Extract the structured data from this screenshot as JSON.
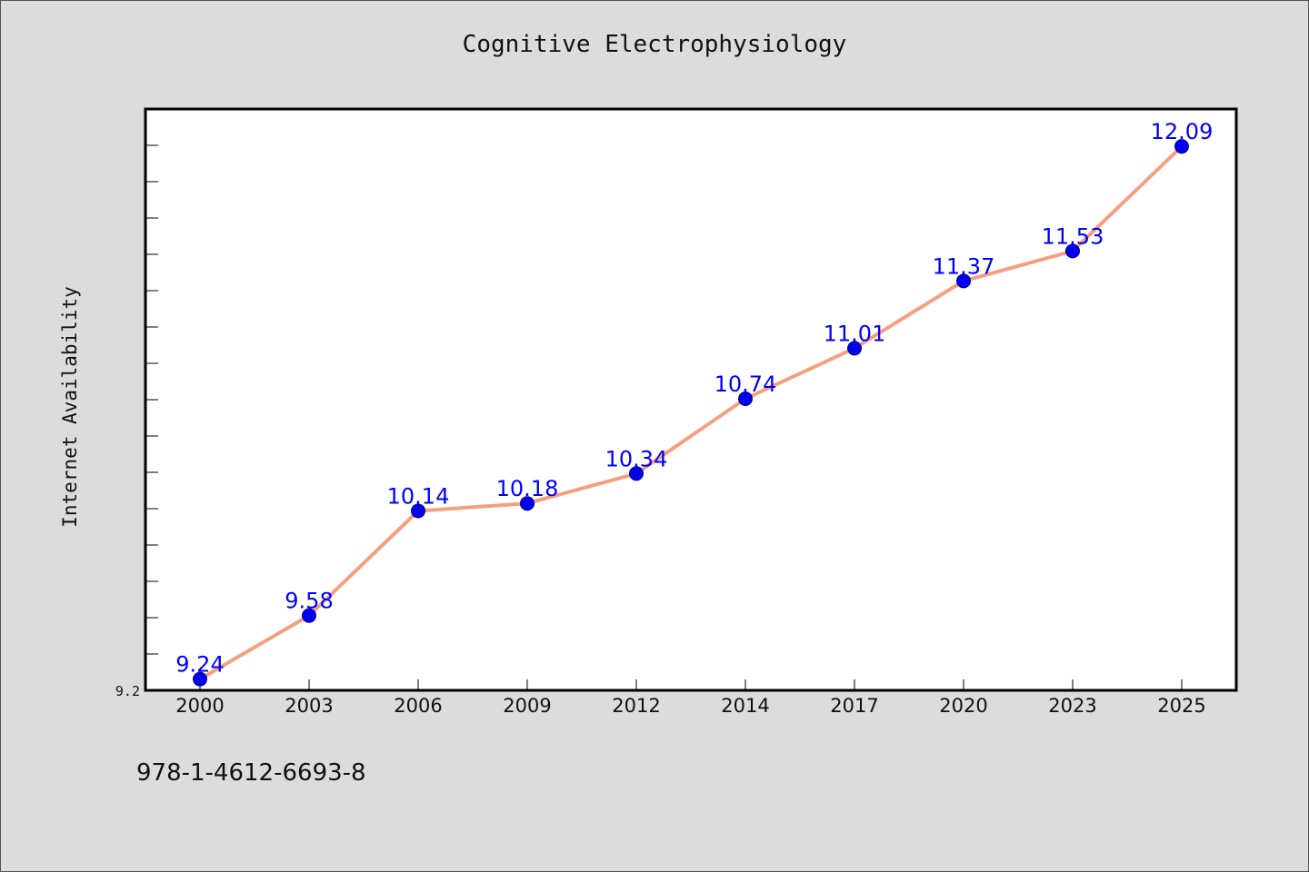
{
  "chart_data": {
    "type": "line",
    "title": "Cognitive Electrophysiology",
    "ylabel": "Internet Availability",
    "xlabel": "",
    "categories": [
      "2000",
      "2003",
      "2006",
      "2009",
      "2012",
      "2014",
      "2017",
      "2020",
      "2023",
      "2025"
    ],
    "series": [
      {
        "values": [
          9.24,
          9.58,
          10.14,
          10.18,
          10.34,
          10.74,
          11.01,
          11.37,
          11.53,
          12.09
        ]
      }
    ],
    "data_labels": [
      "9.24",
      "9.58",
      "10.14",
      "10.18",
      "10.34",
      "10.74",
      "11.01",
      "11.37",
      "11.53",
      "12.09"
    ],
    "y_tick_label": "9.2",
    "ylim": [
      9.18,
      12.29
    ],
    "grid": false,
    "legend": "none",
    "colors": {
      "line": "#f4a07f",
      "marker": "#0000ee",
      "data_label": "#0000ff",
      "background": "#dcdcdc",
      "plot_background": "#ffffff"
    }
  },
  "footer": {
    "isbn": "978-1-4612-6693-8"
  }
}
